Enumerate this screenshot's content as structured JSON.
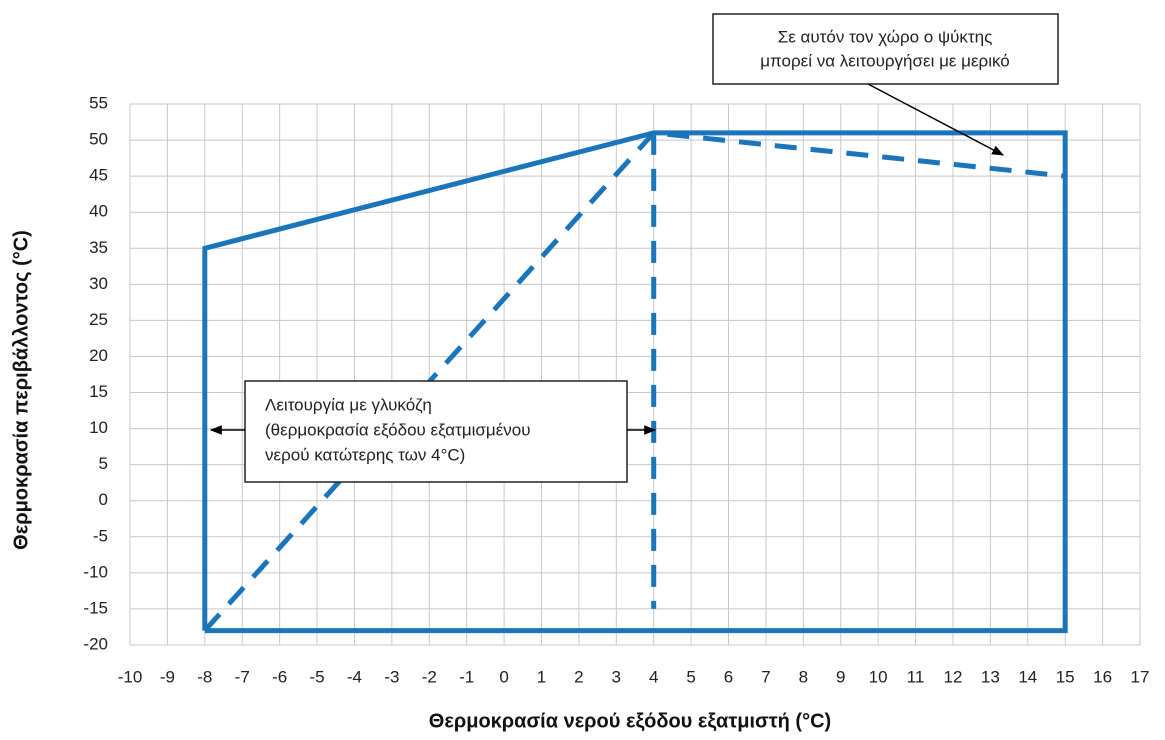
{
  "chart_data": {
    "type": "line",
    "x_label": "Θερμοκρασία νερού εξόδου εξατμιστή (°C)",
    "y_label": "Θερμοκρασία περιβάλλοντος (°C)",
    "xlim": [
      -10,
      17
    ],
    "ylim": [
      -20,
      55
    ],
    "xticks": [
      -10,
      -9,
      -8,
      -7,
      -6,
      -5,
      -4,
      -3,
      -2,
      -1,
      0,
      1,
      2,
      3,
      4,
      5,
      6,
      7,
      8,
      9,
      10,
      11,
      12,
      13,
      14,
      15,
      16,
      17
    ],
    "yticks": [
      -20,
      -15,
      -10,
      -5,
      0,
      5,
      10,
      15,
      20,
      25,
      30,
      35,
      40,
      45,
      50,
      55
    ],
    "grid": true,
    "series": [
      {
        "color": "#1b75bb",
        "dashed": false,
        "x": [
          -8,
          -8,
          4,
          15,
          15,
          -8
        ],
        "values": [
          -18,
          35,
          51,
          51,
          -18,
          -18
        ]
      },
      {
        "color": "#1b75bb",
        "dashed": true,
        "x": [
          -8,
          4,
          15
        ],
        "values": [
          -18,
          51,
          45
        ]
      },
      {
        "color": "#1b75bb",
        "dashed": true,
        "x": [
          4,
          4
        ],
        "values": [
          51,
          -15
        ]
      }
    ],
    "annotations": [
      {
        "lines": [
          "Σε αυτόν τον χώρο ο ψύκτης",
          "μπορεί να λειτουργήσει με μερικό"
        ]
      },
      {
        "lines": [
          "Λειτουργία με γλυκόζη",
          "(θερμοκρασία εξόδου εξατμισμένου",
          "νερού κατώτερης των 4°C)"
        ]
      }
    ]
  }
}
